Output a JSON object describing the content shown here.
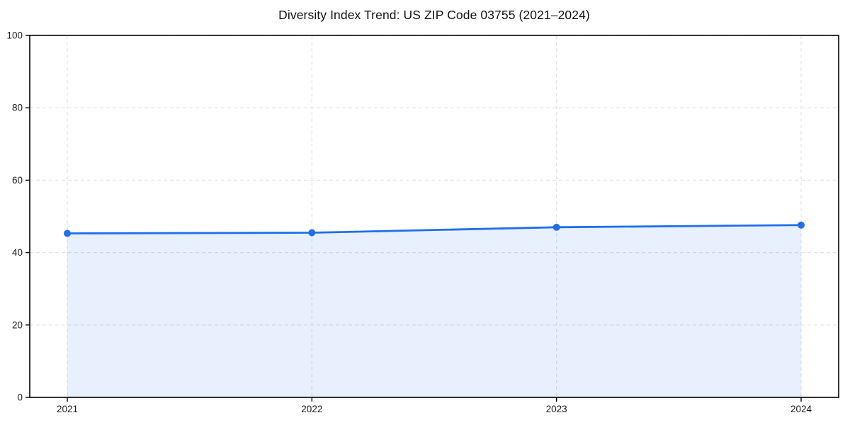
{
  "chart_data": {
    "type": "area",
    "title": "Diversity Index Trend: US ZIP Code 03755 (2021–2024)",
    "categories": [
      "2021",
      "2022",
      "2023",
      "2024"
    ],
    "series": [
      {
        "name": "Diversity Index",
        "values": [
          45.3,
          45.5,
          47.0,
          47.6
        ]
      }
    ],
    "xlabel": "",
    "ylabel": "",
    "ylim": [
      0,
      100
    ],
    "yticks": [
      0,
      20,
      40,
      60,
      80,
      100
    ],
    "grid": true,
    "grid_style": "dashed",
    "legend_position": "none",
    "marker": "circle",
    "colors": {
      "line": "#1f6feb",
      "marker": "#1f6feb",
      "fill": "rgba(31,111,235,0.10)",
      "grid": "#e4e4e4",
      "axis": "#000000",
      "tick_label": "#1a1a1a",
      "title": "#111111",
      "background": "#ffffff"
    }
  }
}
